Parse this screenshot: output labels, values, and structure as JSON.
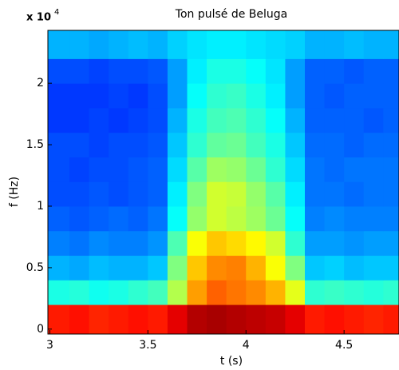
{
  "chart_data": {
    "type": "spectrogram",
    "title": "Ton pulsé de Beluga",
    "xlabel": "t (s)",
    "ylabel": "f (Hz)",
    "y_multiplier": {
      "base": "x 10",
      "exponent": "4"
    },
    "xlim": [
      2.99,
      4.78
    ],
    "ylim": [
      -0.04,
      2.43
    ],
    "xticks": [
      3,
      3.5,
      4,
      4.5
    ],
    "yticks": [
      0,
      0.5,
      1,
      1.5,
      2
    ],
    "colormap": "jet",
    "clim": [
      0,
      1
    ],
    "xbins": [
      2.99,
      3.1,
      3.2,
      3.3,
      3.4,
      3.5,
      3.6,
      3.7,
      3.8,
      3.9,
      4.0,
      4.1,
      4.2,
      4.3,
      4.4,
      4.5,
      4.6,
      4.7,
      4.78
    ],
    "ybins": [
      -0.04,
      0.2,
      0.4,
      0.6,
      0.8,
      1.0,
      1.2,
      1.4,
      1.6,
      1.8,
      2.0,
      2.2,
      2.43
    ],
    "z": [
      [
        0.85,
        0.86,
        0.84,
        0.85,
        0.86,
        0.85,
        0.9,
        0.95,
        0.96,
        0.95,
        0.94,
        0.93,
        0.9,
        0.85,
        0.86,
        0.85,
        0.84,
        0.85
      ],
      [
        0.4,
        0.41,
        0.39,
        0.4,
        0.42,
        0.44,
        0.55,
        0.72,
        0.78,
        0.76,
        0.74,
        0.7,
        0.6,
        0.42,
        0.43,
        0.42,
        0.41,
        0.42
      ],
      [
        0.3,
        0.29,
        0.31,
        0.3,
        0.3,
        0.32,
        0.5,
        0.68,
        0.74,
        0.75,
        0.7,
        0.62,
        0.5,
        0.32,
        0.33,
        0.31,
        0.32,
        0.32
      ],
      [
        0.25,
        0.24,
        0.26,
        0.25,
        0.25,
        0.27,
        0.45,
        0.62,
        0.68,
        0.66,
        0.63,
        0.58,
        0.42,
        0.28,
        0.28,
        0.27,
        0.28,
        0.28
      ],
      [
        0.22,
        0.21,
        0.22,
        0.23,
        0.22,
        0.24,
        0.38,
        0.52,
        0.58,
        0.56,
        0.53,
        0.48,
        0.38,
        0.25,
        0.26,
        0.25,
        0.25,
        0.25
      ],
      [
        0.2,
        0.2,
        0.21,
        0.2,
        0.21,
        0.22,
        0.36,
        0.5,
        0.58,
        0.57,
        0.52,
        0.46,
        0.36,
        0.24,
        0.24,
        0.23,
        0.24,
        0.24
      ],
      [
        0.2,
        0.19,
        0.2,
        0.2,
        0.21,
        0.22,
        0.34,
        0.46,
        0.53,
        0.52,
        0.48,
        0.42,
        0.34,
        0.24,
        0.23,
        0.24,
        0.24,
        0.24
      ],
      [
        0.2,
        0.2,
        0.19,
        0.2,
        0.2,
        0.21,
        0.32,
        0.42,
        0.47,
        0.48,
        0.44,
        0.4,
        0.32,
        0.23,
        0.23,
        0.22,
        0.23,
        0.23
      ],
      [
        0.18,
        0.18,
        0.19,
        0.18,
        0.19,
        0.2,
        0.3,
        0.4,
        0.44,
        0.45,
        0.42,
        0.38,
        0.3,
        0.22,
        0.22,
        0.22,
        0.21,
        0.22
      ],
      [
        0.18,
        0.18,
        0.18,
        0.19,
        0.18,
        0.2,
        0.28,
        0.38,
        0.42,
        0.43,
        0.4,
        0.36,
        0.28,
        0.22,
        0.21,
        0.22,
        0.22,
        0.22
      ],
      [
        0.2,
        0.2,
        0.19,
        0.2,
        0.2,
        0.21,
        0.28,
        0.36,
        0.4,
        0.4,
        0.38,
        0.35,
        0.28,
        0.22,
        0.22,
        0.21,
        0.22,
        0.22
      ],
      [
        0.3,
        0.3,
        0.29,
        0.3,
        0.31,
        0.3,
        0.33,
        0.35,
        0.36,
        0.36,
        0.35,
        0.34,
        0.33,
        0.3,
        0.3,
        0.31,
        0.3,
        0.3
      ]
    ]
  }
}
